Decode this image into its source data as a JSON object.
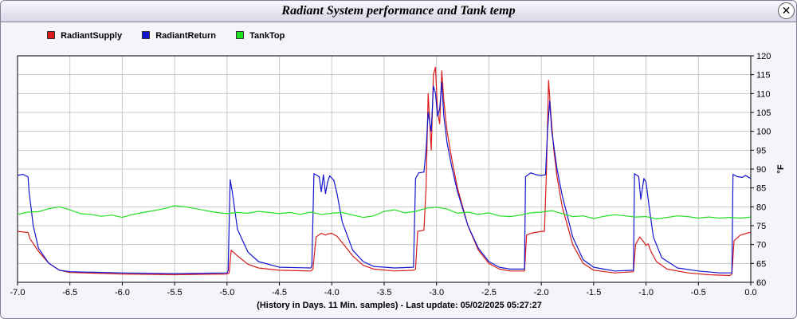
{
  "window": {
    "title": "Radiant System performance and Tank temp",
    "close_glyph": "✕"
  },
  "footer": {
    "text": "(History in Days. 11 Min. samples) - Last update: 05/02/2025 05:27:27"
  },
  "colors": {
    "RadiantSupply": "#d81c1c",
    "RadiantReturn": "#1414d0",
    "TankTop": "#22e022"
  },
  "chart_data": {
    "type": "line",
    "title": "Radiant System performance and Tank temp",
    "ylabel": "°F",
    "xlim": [
      -7.0,
      0.0
    ],
    "ylim": [
      60,
      120
    ],
    "x_ticks": [
      -7.0,
      -6.5,
      -6.0,
      -5.5,
      -5.0,
      -4.5,
      -4.0,
      -3.5,
      -3.0,
      -2.5,
      -2.0,
      -1.5,
      -1.0,
      -0.5,
      0.0
    ],
    "x_tick_labels": [
      "-7.0",
      "-6.5",
      "-6.0",
      "-5.5",
      "-5.0",
      "-4.5",
      "-4.0",
      "-3.5",
      "-3.0",
      "-2.5",
      "-2.0",
      "-1.5",
      "-1.0",
      "-0.5",
      "0.0"
    ],
    "y_ticks": [
      60,
      65,
      70,
      75,
      80,
      85,
      90,
      95,
      100,
      105,
      110,
      115,
      120
    ],
    "grid": true,
    "legend_position": "top-left",
    "series": [
      {
        "name": "RadiantSupply",
        "points": [
          [
            -7.0,
            73.5
          ],
          [
            -6.9,
            73.2
          ],
          [
            -6.88,
            71.5
          ],
          [
            -6.8,
            68.2
          ],
          [
            -6.7,
            65.0
          ],
          [
            -6.6,
            63.2
          ],
          [
            -6.5,
            62.6
          ],
          [
            -6.0,
            62.2
          ],
          [
            -5.5,
            62.0
          ],
          [
            -5.0,
            62.2
          ],
          [
            -4.98,
            62.5
          ],
          [
            -4.96,
            68.5
          ],
          [
            -4.9,
            67.0
          ],
          [
            -4.8,
            64.8
          ],
          [
            -4.7,
            63.8
          ],
          [
            -4.5,
            63.2
          ],
          [
            -4.2,
            63.0
          ],
          [
            -4.18,
            63.5
          ],
          [
            -4.15,
            72.0
          ],
          [
            -4.1,
            73.0
          ],
          [
            -4.06,
            72.5
          ],
          [
            -4.04,
            72.8
          ],
          [
            -4.0,
            73.0
          ],
          [
            -3.95,
            72.2
          ],
          [
            -3.9,
            70.5
          ],
          [
            -3.8,
            67.0
          ],
          [
            -3.7,
            64.5
          ],
          [
            -3.6,
            63.5
          ],
          [
            -3.4,
            63.0
          ],
          [
            -3.22,
            63.2
          ],
          [
            -3.2,
            63.5
          ],
          [
            -3.18,
            73.5
          ],
          [
            -3.12,
            73.8
          ],
          [
            -3.1,
            85.0
          ],
          [
            -3.08,
            110.0
          ],
          [
            -3.05,
            95.0
          ],
          [
            -3.03,
            115.0
          ],
          [
            -3.01,
            117.0
          ],
          [
            -2.99,
            105.0
          ],
          [
            -2.97,
            102.0
          ],
          [
            -2.95,
            116.0
          ],
          [
            -2.93,
            108.0
          ],
          [
            -2.9,
            100.0
          ],
          [
            -2.85,
            92.0
          ],
          [
            -2.8,
            85.0
          ],
          [
            -2.7,
            75.0
          ],
          [
            -2.6,
            68.5
          ],
          [
            -2.5,
            65.0
          ],
          [
            -2.4,
            63.5
          ],
          [
            -2.3,
            63.0
          ],
          [
            -2.16,
            63.0
          ],
          [
            -2.14,
            72.5
          ],
          [
            -2.1,
            73.0
          ],
          [
            -2.0,
            73.5
          ],
          [
            -1.97,
            73.5
          ],
          [
            -1.95,
            90.0
          ],
          [
            -1.93,
            113.5
          ],
          [
            -1.91,
            105.0
          ],
          [
            -1.88,
            95.0
          ],
          [
            -1.85,
            88.0
          ],
          [
            -1.8,
            80.0
          ],
          [
            -1.7,
            70.0
          ],
          [
            -1.6,
            65.0
          ],
          [
            -1.5,
            63.2
          ],
          [
            -1.3,
            62.5
          ],
          [
            -1.12,
            62.8
          ],
          [
            -1.1,
            70.0
          ],
          [
            -1.06,
            72.0
          ],
          [
            -1.03,
            71.0
          ],
          [
            -1.0,
            69.8
          ],
          [
            -0.98,
            70.2
          ],
          [
            -0.95,
            68.0
          ],
          [
            -0.9,
            65.5
          ],
          [
            -0.8,
            63.5
          ],
          [
            -0.6,
            62.5
          ],
          [
            -0.4,
            62.0
          ],
          [
            -0.2,
            61.8
          ],
          [
            -0.18,
            62.2
          ],
          [
            -0.16,
            71.0
          ],
          [
            -0.1,
            72.5
          ],
          [
            0.0,
            73.3
          ]
        ]
      },
      {
        "name": "RadiantReturn",
        "points": [
          [
            -7.0,
            88.3
          ],
          [
            -6.95,
            88.6
          ],
          [
            -6.92,
            88.2
          ],
          [
            -6.9,
            88.0
          ],
          [
            -6.89,
            84.0
          ],
          [
            -6.85,
            75.0
          ],
          [
            -6.8,
            69.0
          ],
          [
            -6.7,
            65.0
          ],
          [
            -6.6,
            63.2
          ],
          [
            -6.5,
            62.8
          ],
          [
            -6.0,
            62.5
          ],
          [
            -5.5,
            62.3
          ],
          [
            -5.0,
            62.5
          ],
          [
            -4.99,
            63.0
          ],
          [
            -4.97,
            87.2
          ],
          [
            -4.95,
            84.0
          ],
          [
            -4.9,
            74.0
          ],
          [
            -4.8,
            68.0
          ],
          [
            -4.7,
            65.5
          ],
          [
            -4.5,
            64.0
          ],
          [
            -4.2,
            63.8
          ],
          [
            -4.19,
            64.5
          ],
          [
            -4.17,
            88.8
          ],
          [
            -4.12,
            88.0
          ],
          [
            -4.1,
            84.0
          ],
          [
            -4.08,
            88.5
          ],
          [
            -4.06,
            83.5
          ],
          [
            -4.04,
            86.5
          ],
          [
            -4.02,
            88.2
          ],
          [
            -3.98,
            87.0
          ],
          [
            -3.95,
            83.5
          ],
          [
            -3.9,
            76.0
          ],
          [
            -3.8,
            68.5
          ],
          [
            -3.7,
            65.5
          ],
          [
            -3.6,
            64.2
          ],
          [
            -3.4,
            63.8
          ],
          [
            -3.22,
            64.0
          ],
          [
            -3.2,
            87.5
          ],
          [
            -3.17,
            89.0
          ],
          [
            -3.12,
            89.2
          ],
          [
            -3.1,
            95.0
          ],
          [
            -3.08,
            105.0
          ],
          [
            -3.05,
            100.0
          ],
          [
            -3.03,
            112.0
          ],
          [
            -3.01,
            110.0
          ],
          [
            -2.99,
            104.0
          ],
          [
            -2.97,
            106.0
          ],
          [
            -2.95,
            113.0
          ],
          [
            -2.93,
            104.0
          ],
          [
            -2.9,
            97.0
          ],
          [
            -2.85,
            90.0
          ],
          [
            -2.8,
            84.0
          ],
          [
            -2.7,
            75.0
          ],
          [
            -2.6,
            69.0
          ],
          [
            -2.5,
            65.5
          ],
          [
            -2.4,
            64.0
          ],
          [
            -2.3,
            63.5
          ],
          [
            -2.16,
            63.5
          ],
          [
            -2.15,
            88.0
          ],
          [
            -2.1,
            89.0
          ],
          [
            -2.05,
            88.5
          ],
          [
            -2.0,
            88.3
          ],
          [
            -1.96,
            88.5
          ],
          [
            -1.94,
            100.0
          ],
          [
            -1.92,
            108.0
          ],
          [
            -1.9,
            100.0
          ],
          [
            -1.85,
            90.0
          ],
          [
            -1.8,
            83.0
          ],
          [
            -1.7,
            72.0
          ],
          [
            -1.6,
            66.0
          ],
          [
            -1.5,
            64.0
          ],
          [
            -1.3,
            63.0
          ],
          [
            -1.12,
            63.2
          ],
          [
            -1.11,
            88.8
          ],
          [
            -1.07,
            88.0
          ],
          [
            -1.05,
            82.0
          ],
          [
            -1.02,
            87.5
          ],
          [
            -1.0,
            86.5
          ],
          [
            -0.97,
            80.0
          ],
          [
            -0.93,
            72.0
          ],
          [
            -0.85,
            66.5
          ],
          [
            -0.7,
            63.8
          ],
          [
            -0.5,
            63.0
          ],
          [
            -0.3,
            62.5
          ],
          [
            -0.18,
            62.5
          ],
          [
            -0.17,
            88.6
          ],
          [
            -0.13,
            88.0
          ],
          [
            -0.08,
            87.8
          ],
          [
            -0.05,
            88.3
          ],
          [
            0.0,
            87.5
          ]
        ]
      },
      {
        "name": "TankTop",
        "points": [
          [
            -7.0,
            78.0
          ],
          [
            -6.9,
            78.6
          ],
          [
            -6.8,
            78.7
          ],
          [
            -6.7,
            79.5
          ],
          [
            -6.6,
            80.0
          ],
          [
            -6.5,
            79.2
          ],
          [
            -6.4,
            78.2
          ],
          [
            -6.3,
            78.0
          ],
          [
            -6.2,
            77.5
          ],
          [
            -6.1,
            77.8
          ],
          [
            -6.0,
            77.2
          ],
          [
            -5.9,
            78.0
          ],
          [
            -5.8,
            78.5
          ],
          [
            -5.7,
            79.0
          ],
          [
            -5.6,
            79.5
          ],
          [
            -5.5,
            80.3
          ],
          [
            -5.4,
            80.0
          ],
          [
            -5.3,
            79.5
          ],
          [
            -5.2,
            79.0
          ],
          [
            -5.1,
            78.5
          ],
          [
            -5.0,
            78.2
          ],
          [
            -4.9,
            78.5
          ],
          [
            -4.8,
            78.3
          ],
          [
            -4.7,
            78.8
          ],
          [
            -4.6,
            78.5
          ],
          [
            -4.5,
            78.2
          ],
          [
            -4.4,
            78.5
          ],
          [
            -4.3,
            78.0
          ],
          [
            -4.2,
            78.6
          ],
          [
            -4.1,
            78.0
          ],
          [
            -4.0,
            78.3
          ],
          [
            -3.9,
            78.5
          ],
          [
            -3.8,
            77.8
          ],
          [
            -3.7,
            77.2
          ],
          [
            -3.6,
            77.6
          ],
          [
            -3.5,
            78.8
          ],
          [
            -3.4,
            79.2
          ],
          [
            -3.3,
            78.4
          ],
          [
            -3.2,
            78.8
          ],
          [
            -3.1,
            79.6
          ],
          [
            -3.0,
            79.9
          ],
          [
            -2.9,
            79.4
          ],
          [
            -2.8,
            78.3
          ],
          [
            -2.7,
            78.6
          ],
          [
            -2.6,
            78.0
          ],
          [
            -2.5,
            78.4
          ],
          [
            -2.4,
            77.6
          ],
          [
            -2.3,
            77.4
          ],
          [
            -2.2,
            77.8
          ],
          [
            -2.1,
            78.4
          ],
          [
            -2.0,
            78.6
          ],
          [
            -1.9,
            79.0
          ],
          [
            -1.8,
            78.2
          ],
          [
            -1.7,
            77.4
          ],
          [
            -1.6,
            77.6
          ],
          [
            -1.5,
            76.9
          ],
          [
            -1.4,
            77.5
          ],
          [
            -1.3,
            77.9
          ],
          [
            -1.2,
            77.6
          ],
          [
            -1.1,
            77.3
          ],
          [
            -1.0,
            77.4
          ],
          [
            -0.9,
            76.8
          ],
          [
            -0.8,
            77.2
          ],
          [
            -0.7,
            77.6
          ],
          [
            -0.6,
            77.4
          ],
          [
            -0.5,
            77.0
          ],
          [
            -0.4,
            77.3
          ],
          [
            -0.3,
            77.0
          ],
          [
            -0.2,
            77.2
          ],
          [
            -0.1,
            77.0
          ],
          [
            0.0,
            77.3
          ]
        ]
      }
    ]
  }
}
